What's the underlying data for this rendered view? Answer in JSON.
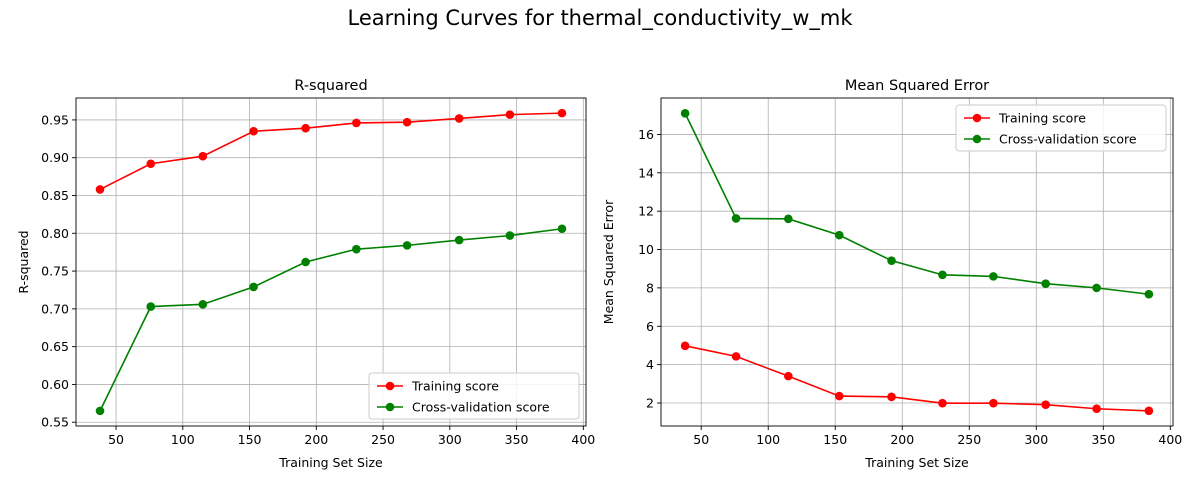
{
  "figure": {
    "title": "Learning Curves for thermal_conductivity_w_mk"
  },
  "chart_data": [
    {
      "type": "line",
      "title": "R-squared",
      "xlabel": "Training Set Size",
      "ylabel": "R-squared",
      "xlim": [
        20,
        402
      ],
      "ylim": [
        0.545,
        0.979
      ],
      "xticks": [
        50,
        100,
        150,
        200,
        250,
        300,
        350,
        400
      ],
      "yticks": [
        0.55,
        0.6,
        0.65,
        0.7,
        0.75,
        0.8,
        0.85,
        0.9,
        0.95
      ],
      "ytick_decimals": 2,
      "grid": true,
      "legend": "lower-right",
      "x": [
        38,
        76,
        115,
        153,
        192,
        230,
        268,
        307,
        345,
        384
      ],
      "series": [
        {
          "name": "Training score",
          "color": "#ff0000",
          "values": [
            0.858,
            0.892,
            0.902,
            0.935,
            0.939,
            0.946,
            0.947,
            0.952,
            0.957,
            0.959
          ]
        },
        {
          "name": "Cross-validation score",
          "color": "#008000",
          "values": [
            0.565,
            0.703,
            0.706,
            0.729,
            0.762,
            0.779,
            0.784,
            0.791,
            0.797,
            0.806
          ]
        }
      ]
    },
    {
      "type": "line",
      "title": "Mean Squared Error",
      "xlabel": "Training Set Size",
      "ylabel": "Mean Squared Error",
      "xlim": [
        20,
        402
      ],
      "ylim": [
        0.8,
        17.9
      ],
      "xticks": [
        50,
        100,
        150,
        200,
        250,
        300,
        350,
        400
      ],
      "yticks": [
        2,
        4,
        6,
        8,
        10,
        12,
        14,
        16
      ],
      "ytick_decimals": 0,
      "grid": true,
      "legend": "upper-right",
      "x": [
        38,
        76,
        115,
        153,
        192,
        230,
        268,
        307,
        345,
        384
      ],
      "series": [
        {
          "name": "Training score",
          "color": "#ff0000",
          "values": [
            4.98,
            4.43,
            3.4,
            2.36,
            2.32,
            1.99,
            1.99,
            1.91,
            1.7,
            1.59
          ]
        },
        {
          "name": "Cross-validation score",
          "color": "#008000",
          "values": [
            17.1,
            11.62,
            11.6,
            10.75,
            9.42,
            8.68,
            8.6,
            8.22,
            8.0,
            7.67
          ]
        }
      ]
    }
  ]
}
